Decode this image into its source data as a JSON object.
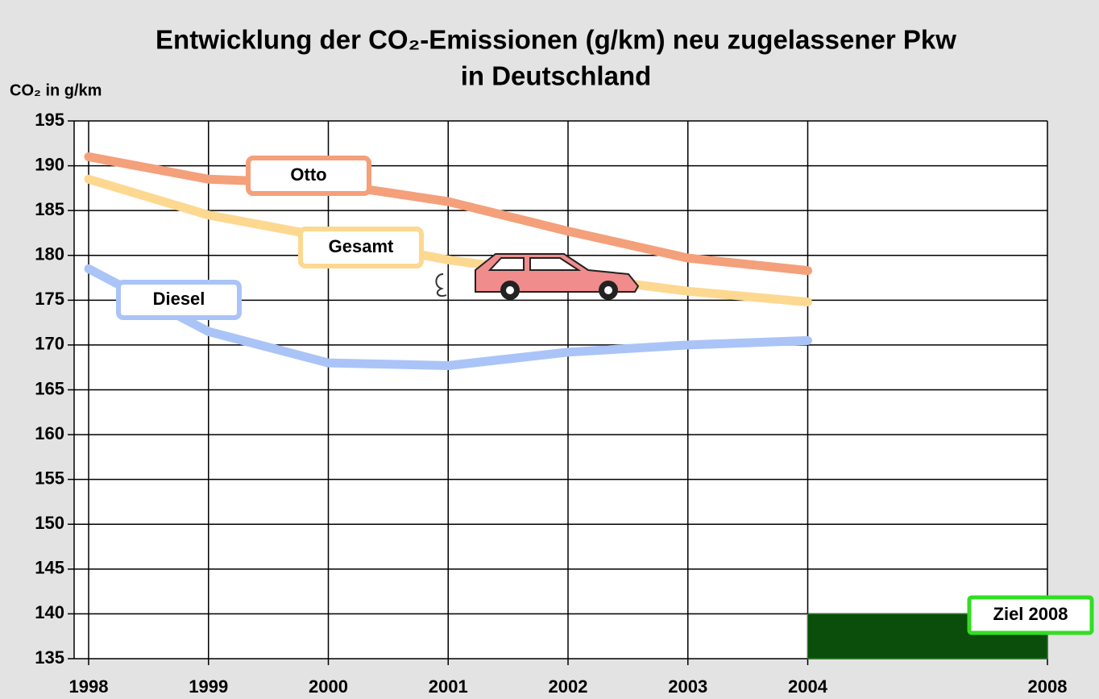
{
  "chart_data": {
    "type": "line",
    "title_lines": [
      "Entwicklung der CO₂-Emissionen (g/km) neu zugelassener Pkw",
      "in Deutschland"
    ],
    "y_label": "CO₂ in g/km",
    "categories": [
      "1998",
      "1999",
      "2000",
      "2001",
      "2002",
      "2003",
      "2004",
      null,
      "2008"
    ],
    "series": [
      {
        "name": "Otto",
        "color": "#f4a07a",
        "values": [
          191,
          188.5,
          188,
          186,
          182.7,
          179.7,
          178.3,
          null,
          null
        ]
      },
      {
        "name": "Gesamt",
        "color": "#fdd890",
        "values": [
          188.5,
          184.5,
          182,
          179.5,
          177.7,
          176,
          174.8,
          null,
          null
        ]
      },
      {
        "name": "Diesel",
        "color": "#aac4f8",
        "values": [
          178.5,
          171.5,
          168,
          167.7,
          169.2,
          170,
          170.5,
          null,
          null
        ]
      }
    ],
    "target": {
      "label": "Ziel 2008",
      "value": 140,
      "categories": [
        "2004",
        "2008"
      ],
      "color": "#0b4d0b",
      "border": "#33dd22"
    },
    "ylim": [
      135,
      195
    ],
    "yticks": [
      135,
      140,
      145,
      150,
      155,
      160,
      165,
      170,
      175,
      180,
      185,
      190,
      195
    ],
    "grid": true
  }
}
